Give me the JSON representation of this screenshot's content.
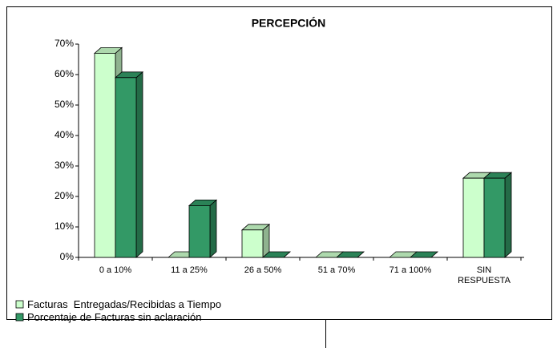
{
  "chart_data": {
    "type": "bar3d",
    "title": "PERCEPCIÓN",
    "categories": [
      "0 a 10%",
      "11 a 25%",
      "26 a 50%",
      "51 a 70%",
      "71 a 100%",
      "SIN RESPUESTA"
    ],
    "series": [
      {
        "name": "Facturas  Entregadas/Recibidas a Tiempo",
        "color": "#ccffcc",
        "values": [
          67,
          0,
          9,
          0,
          0,
          26
        ]
      },
      {
        "name": "Porcentaje de Facturas sin aclaración",
        "color": "#339966",
        "values": [
          59,
          17,
          0,
          0,
          0,
          26
        ]
      }
    ],
    "ylim": [
      0,
      70
    ],
    "yticks": [
      {
        "value": 0,
        "label": "0%"
      },
      {
        "value": 10,
        "label": "10%"
      },
      {
        "value": 20,
        "label": "20%"
      },
      {
        "value": 30,
        "label": "30%"
      },
      {
        "value": 40,
        "label": "40%"
      },
      {
        "value": 50,
        "label": "50%"
      },
      {
        "value": 60,
        "label": "60%"
      },
      {
        "value": 70,
        "label": "70%"
      }
    ],
    "grid": false,
    "legend": "bottom-left"
  }
}
